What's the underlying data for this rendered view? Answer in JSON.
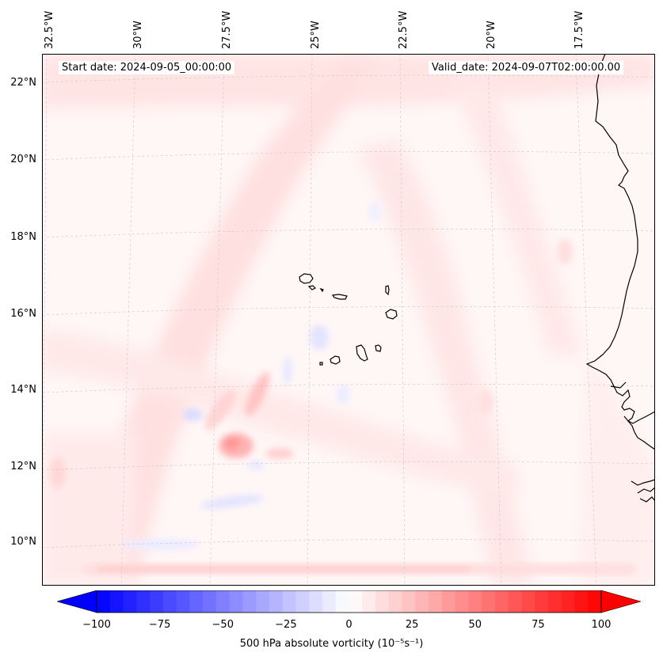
{
  "map": {
    "title_left": "Start date: 2024-09-05_00:00:00",
    "title_right": "Valid_date: 2024-09-07T02:00:00.00",
    "lon_labels": [
      "32.5°W",
      "30°W",
      "27.5°W",
      "25°W",
      "22.5°W",
      "20°W",
      "17.5°W"
    ],
    "lat_labels": [
      "22°N",
      "20°N",
      "18°N",
      "16°N",
      "14°N",
      "12°N",
      "10°N"
    ],
    "extent": {
      "lon_min": -33.0,
      "lon_max": -15.5,
      "lat_min": 8.9,
      "lat_max": 22.8
    },
    "features": [
      "Cabo Verde islands",
      "West African coastline"
    ]
  },
  "colorbar": {
    "ticks": [
      "−100",
      "−75",
      "−50",
      "−25",
      "0",
      "25",
      "50",
      "75",
      "100"
    ],
    "label": "500 hPa absolute vorticity (10⁻⁵s⁻¹)",
    "min": -100,
    "max": 100,
    "low_color": "#0000ff",
    "mid_color": "#ffffff",
    "high_color": "#ff0000"
  }
}
